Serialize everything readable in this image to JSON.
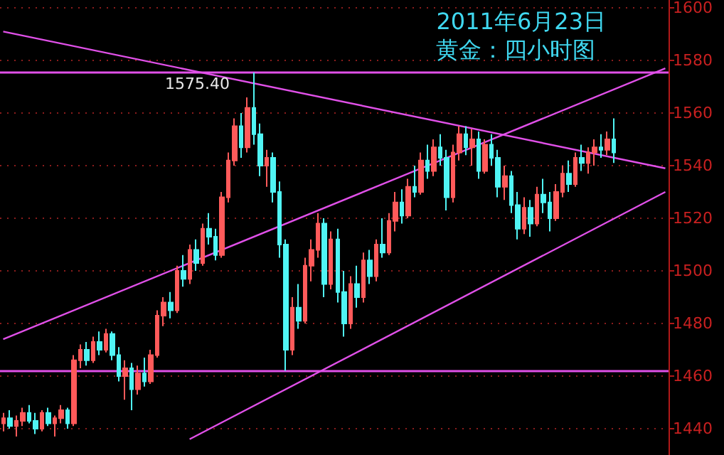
{
  "chart_data": {
    "type": "candlestick",
    "title": "2011年6月23日",
    "subtitle": "黄金：四小时图",
    "categories": [
      null,
      null,
      null,
      null,
      null,
      null,
      null,
      null,
      null,
      null,
      null,
      null,
      null,
      null,
      null,
      null,
      null,
      null,
      null,
      null,
      null,
      null,
      null,
      null,
      null,
      null,
      null,
      null,
      null,
      null,
      null,
      null,
      null,
      null,
      null,
      null,
      null,
      null,
      null,
      null,
      null,
      null,
      null,
      null,
      null,
      null,
      null,
      null,
      null,
      null,
      null,
      null,
      null,
      null,
      null,
      null,
      null,
      null,
      null,
      null,
      null,
      null,
      null,
      null,
      null,
      null,
      null,
      null,
      null,
      null,
      null,
      null,
      null,
      null,
      null,
      null,
      null,
      null,
      null,
      null,
      null,
      null,
      null,
      null,
      null,
      null,
      null,
      null,
      null,
      null,
      null,
      null,
      null,
      null,
      null,
      null,
      null,
      null,
      null,
      null,
      null,
      null,
      null,
      null
    ],
    "series": [
      {
        "colors": [
          "#ff5a5a",
          "#50f4f4",
          "#ff5a5a",
          "#ff5a5a",
          "#50f4f4",
          "#50f4f4",
          "#ff5a5a",
          "#50f4f4",
          "#ff5a5a",
          "#ff5a5a",
          "#50f4f4",
          "#ff5a5a",
          "#ff5a5a",
          "#50f4f4",
          "#ff5a5a",
          "#50f4f4",
          "#ff5a5a",
          "#50f4f4",
          "#50f4f4",
          "#ff5a5a",
          "#50f4f4",
          "#ff5a5a",
          "#50f4f4",
          "#ff5a5a",
          "#ff5a5a",
          "#ff5a5a",
          "#50f4f4",
          "#ff5a5a",
          "#50f4f4",
          "#ff5a5a",
          "#50f4f4",
          "#ff5a5a",
          "#50f4f4",
          "#50f4f4",
          "#ff5a5a",
          "#ff5a5a",
          "#ff5a5a",
          "#50f4f4",
          "#ff5a5a",
          "#50f4f4",
          "#50f4f4",
          "#ff5a5a",
          "#50f4f4",
          "#50f4f4",
          "#50f4f4",
          "#ff5a5a",
          "#50f4f4",
          "#ff5a5a",
          "#ff5a5a",
          "#ff5a5a",
          "#50f4f4",
          "#ff5a5a",
          "#50f4f4",
          "#50f4f4",
          "#ff5a5a",
          "#50f4f4",
          "#ff5a5a",
          "#50f4f4",
          "#ff5a5a",
          "#50f4f4",
          "#ff5a5a",
          "#ff5a5a",
          "#50f4f4",
          "#ff5a5a",
          "#50f4f4",
          "#ff5a5a",
          "#50f4f4",
          "#ff5a5a",
          "#50f4f4",
          "#50f4f4",
          "#ff5a5a",
          "#ff5a5a",
          "#50f4f4",
          "#ff5a5a",
          "#50f4f4",
          "#ff5a5a",
          "#50f4f4",
          "#50f4f4",
          "#ff5a5a",
          "#50f4f4",
          "#50f4f4",
          "#ff5a5a",
          "#50f4f4",
          "#ff5a5a",
          "#50f4f4",
          "#50f4f4",
          "#ff5a5a",
          "#ff5a5a",
          "#50f4f4",
          "#ff5a5a",
          "#50f4f4",
          "#ff5a5a",
          "#ff5a5a",
          "#50f4f4",
          "#ff5a5a",
          "#50f4f4",
          null,
          null,
          null,
          null,
          null,
          null,
          null,
          null
        ],
        "ohlc": [
          [
            1442,
            1446,
            1439,
            1444
          ],
          [
            1444,
            1447,
            1440,
            1441
          ],
          [
            1441,
            1445,
            1437,
            1443
          ],
          [
            1443,
            1448,
            1441,
            1446
          ],
          [
            1446,
            1449,
            1442,
            1443
          ],
          [
            1443,
            1446,
            1438,
            1440
          ],
          [
            1440,
            1447,
            1439,
            1446
          ],
          [
            1446,
            1448,
            1441,
            1442
          ],
          [
            1442,
            1445,
            1437,
            1444
          ],
          [
            1444,
            1449,
            1442,
            1447
          ],
          [
            1447,
            1448,
            1440,
            1442
          ],
          [
            1442,
            1468,
            1441,
            1466
          ],
          [
            1466,
            1472,
            1463,
            1470
          ],
          [
            1470,
            1473,
            1464,
            1466
          ],
          [
            1466,
            1475,
            1465,
            1473
          ],
          [
            1473,
            1477,
            1468,
            1470
          ],
          [
            1470,
            1478,
            1469,
            1476
          ],
          [
            1476,
            1477,
            1466,
            1468
          ],
          [
            1468,
            1471,
            1458,
            1460
          ],
          [
            1460,
            1466,
            1451,
            1463
          ],
          [
            1463,
            1465,
            1447,
            1455
          ],
          [
            1455,
            1464,
            1453,
            1461
          ],
          [
            1461,
            1467,
            1456,
            1458
          ],
          [
            1458,
            1470,
            1457,
            1468
          ],
          [
            1468,
            1485,
            1467,
            1483
          ],
          [
            1483,
            1490,
            1479,
            1488
          ],
          [
            1488,
            1492,
            1482,
            1485
          ],
          [
            1485,
            1502,
            1484,
            1500
          ],
          [
            1500,
            1506,
            1494,
            1497
          ],
          [
            1497,
            1510,
            1495,
            1508
          ],
          [
            1508,
            1512,
            1500,
            1503
          ],
          [
            1503,
            1518,
            1502,
            1516
          ],
          [
            1516,
            1522,
            1510,
            1513
          ],
          [
            1513,
            1516,
            1504,
            1506
          ],
          [
            1506,
            1530,
            1505,
            1528
          ],
          [
            1528,
            1545,
            1526,
            1542
          ],
          [
            1542,
            1558,
            1540,
            1555
          ],
          [
            1555,
            1560,
            1543,
            1547
          ],
          [
            1547,
            1566,
            1545,
            1562
          ],
          [
            1562,
            1575.4,
            1548,
            1552
          ],
          [
            1552,
            1556,
            1536,
            1540
          ],
          [
            1540,
            1546,
            1532,
            1543
          ],
          [
            1543,
            1545,
            1526,
            1530
          ],
          [
            1530,
            1534,
            1505,
            1510
          ],
          [
            1510,
            1512,
            1462,
            1470
          ],
          [
            1470,
            1490,
            1468,
            1486
          ],
          [
            1486,
            1495,
            1478,
            1481
          ],
          [
            1481,
            1505,
            1480,
            1502
          ],
          [
            1502,
            1512,
            1496,
            1508
          ],
          [
            1508,
            1522,
            1505,
            1518
          ],
          [
            1518,
            1520,
            1490,
            1495
          ],
          [
            1495,
            1515,
            1493,
            1512
          ],
          [
            1512,
            1516,
            1488,
            1492
          ],
          [
            1492,
            1500,
            1475,
            1480
          ],
          [
            1480,
            1498,
            1478,
            1495
          ],
          [
            1495,
            1502,
            1486,
            1490
          ],
          [
            1490,
            1507,
            1488,
            1504
          ],
          [
            1504,
            1508,
            1495,
            1498
          ],
          [
            1498,
            1512,
            1496,
            1510
          ],
          [
            1510,
            1520,
            1505,
            1507
          ],
          [
            1507,
            1522,
            1506,
            1519
          ],
          [
            1519,
            1530,
            1515,
            1526
          ],
          [
            1526,
            1531,
            1518,
            1521
          ],
          [
            1521,
            1535,
            1520,
            1532
          ],
          [
            1532,
            1540,
            1528,
            1530
          ],
          [
            1530,
            1545,
            1529,
            1542
          ],
          [
            1542,
            1548,
            1535,
            1538
          ],
          [
            1538,
            1550,
            1536,
            1547
          ],
          [
            1547,
            1552,
            1540,
            1543
          ],
          [
            1543,
            1546,
            1523,
            1528
          ],
          [
            1528,
            1548,
            1526,
            1545
          ],
          [
            1545,
            1555,
            1542,
            1552
          ],
          [
            1552,
            1555,
            1544,
            1547
          ],
          [
            1547,
            1554,
            1540,
            1550
          ],
          [
            1550,
            1553,
            1535,
            1538
          ],
          [
            1538,
            1550,
            1537,
            1548
          ],
          [
            1548,
            1552,
            1540,
            1543
          ],
          [
            1543,
            1546,
            1528,
            1532
          ],
          [
            1532,
            1540,
            1527,
            1536
          ],
          [
            1536,
            1538,
            1522,
            1525
          ],
          [
            1525,
            1530,
            1512,
            1516
          ],
          [
            1516,
            1528,
            1514,
            1524
          ],
          [
            1524,
            1527,
            1513,
            1518
          ],
          [
            1518,
            1532,
            1517,
            1529
          ],
          [
            1529,
            1535,
            1522,
            1526
          ],
          [
            1526,
            1530,
            1515,
            1520
          ],
          [
            1520,
            1533,
            1519,
            1530
          ],
          [
            1530,
            1540,
            1528,
            1537
          ],
          [
            1537,
            1542,
            1530,
            1533
          ],
          [
            1533,
            1545,
            1532,
            1543
          ],
          [
            1543,
            1548,
            1538,
            1541
          ],
          [
            1541,
            1547,
            1537,
            1545
          ],
          [
            1545,
            1550,
            1540,
            1547
          ],
          [
            1547,
            1552,
            1543,
            1546
          ],
          [
            1546,
            1553,
            1544,
            1550
          ],
          [
            1550,
            1558,
            1541,
            1545
          ],
          null,
          null,
          null,
          null,
          null,
          null,
          null,
          null
        ]
      },
      {
        "type": "line",
        "color": "#e050e8",
        "values": [
          1591,
          null,
          null,
          null,
          null,
          null,
          null,
          null,
          null,
          null,
          null,
          null,
          null,
          null,
          null,
          null,
          null,
          null,
          null,
          null,
          null,
          null,
          null,
          null,
          null,
          null,
          null,
          null,
          null,
          null,
          null,
          null,
          null,
          null,
          null,
          null,
          null,
          null,
          null,
          null,
          null,
          null,
          null,
          null,
          null,
          null,
          null,
          null,
          null,
          null,
          null,
          null,
          null,
          null,
          null,
          null,
          null,
          null,
          null,
          null,
          null,
          null,
          null,
          null,
          null,
          null,
          null,
          null,
          null,
          null,
          null,
          null,
          null,
          null,
          null,
          null,
          null,
          null,
          null,
          null,
          null,
          null,
          null,
          null,
          null,
          null,
          null,
          null,
          null,
          null,
          null,
          null,
          null,
          null,
          null,
          null,
          null,
          null,
          null,
          null,
          null,
          null,
          null,
          1539
        ]
      },
      {
        "type": "line",
        "color": "#e050e8",
        "values": [
          1474,
          null,
          null,
          null,
          null,
          null,
          null,
          null,
          null,
          null,
          null,
          null,
          null,
          null,
          null,
          null,
          null,
          null,
          null,
          null,
          null,
          null,
          null,
          null,
          null,
          null,
          null,
          null,
          null,
          null,
          null,
          null,
          null,
          null,
          null,
          null,
          null,
          null,
          null,
          null,
          null,
          null,
          null,
          null,
          null,
          null,
          null,
          null,
          null,
          null,
          null,
          null,
          null,
          null,
          null,
          null,
          null,
          null,
          null,
          null,
          null,
          null,
          null,
          null,
          null,
          null,
          null,
          null,
          null,
          null,
          null,
          null,
          null,
          null,
          null,
          null,
          null,
          null,
          null,
          null,
          null,
          null,
          null,
          null,
          null,
          null,
          null,
          null,
          null,
          null,
          null,
          null,
          null,
          null,
          null,
          null,
          null,
          null,
          null,
          null,
          null,
          null,
          null,
          1577
        ]
      },
      {
        "type": "line",
        "color": "#e050e8",
        "values": [
          null,
          null,
          null,
          null,
          null,
          null,
          null,
          null,
          null,
          null,
          null,
          null,
          null,
          null,
          null,
          null,
          null,
          null,
          null,
          null,
          null,
          null,
          null,
          null,
          null,
          null,
          null,
          null,
          null,
          1436,
          null,
          null,
          null,
          null,
          null,
          null,
          null,
          null,
          null,
          null,
          null,
          null,
          null,
          null,
          null,
          null,
          null,
          null,
          null,
          null,
          null,
          null,
          null,
          null,
          null,
          null,
          null,
          null,
          null,
          null,
          null,
          null,
          null,
          null,
          null,
          null,
          null,
          null,
          null,
          null,
          null,
          null,
          null,
          null,
          null,
          null,
          null,
          null,
          null,
          null,
          null,
          null,
          null,
          null,
          null,
          null,
          null,
          null,
          null,
          null,
          null,
          null,
          null,
          null,
          null,
          null,
          null,
          null,
          null,
          null,
          null,
          null,
          null,
          1530
        ]
      }
    ],
    "ref_lines": [
      {
        "axis": "y",
        "value": 1575.4,
        "color": "#e050e8"
      },
      {
        "axis": "y",
        "value": 1462,
        "color": "#e050e8"
      }
    ],
    "annotations": [
      {
        "text": "1575.40",
        "y": 1575.4
      }
    ],
    "ylim": [
      1430,
      1603
    ],
    "yticks": [
      1440,
      1460,
      1480,
      1500,
      1520,
      1540,
      1560,
      1580,
      1600
    ],
    "grid": "y",
    "tick_labels": "y"
  }
}
